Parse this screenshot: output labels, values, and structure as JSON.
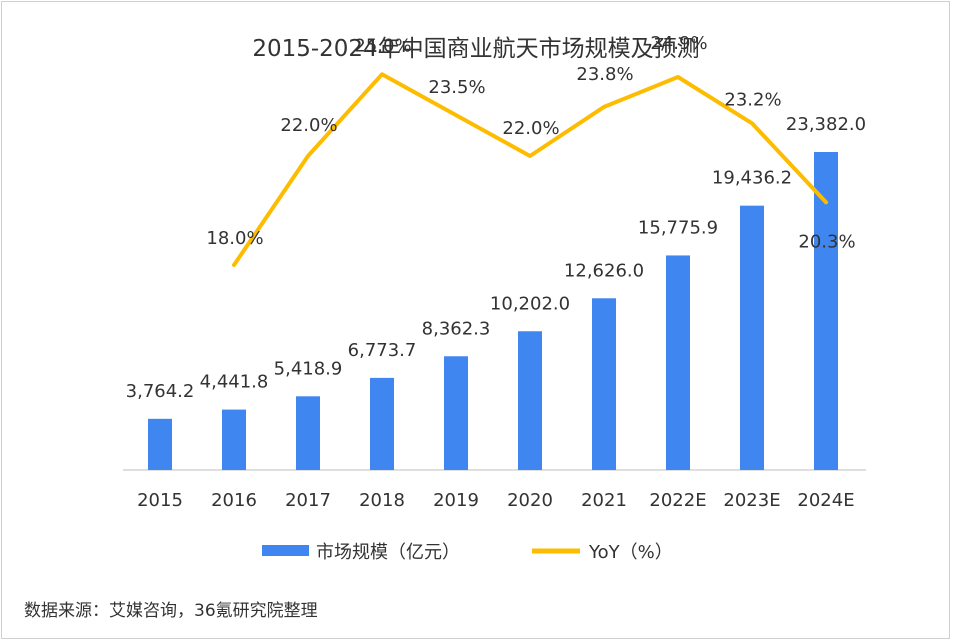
{
  "chart_data": {
    "type": "bar",
    "title": "2015-2024年中国商业航天市场规模及预测",
    "categories": [
      "2015",
      "2016",
      "2017",
      "2018",
      "2019",
      "2020",
      "2021",
      "2022E",
      "2023E",
      "2024E"
    ],
    "series": [
      {
        "name": "市场规模（亿元）",
        "type": "bar",
        "values": [
          3764.2,
          4441.8,
          5418.9,
          6773.7,
          8362.3,
          10202.0,
          12626.0,
          15775.9,
          19436.2,
          23382.0
        ],
        "labels": [
          "3,764.2",
          "4,441.8",
          "5,418.9",
          "6,773.7",
          "8,362.3",
          "10,202.0",
          "12,626.0",
          "15,775.9",
          "19,436.2",
          "23,382.0"
        ],
        "color": "#3f86f0"
      },
      {
        "name": "YoY（%）",
        "type": "line",
        "values": [
          null,
          18.0,
          22.0,
          25.0,
          23.5,
          22.0,
          23.8,
          24.9,
          23.2,
          20.3
        ],
        "labels": [
          "",
          "18.0%",
          "22.0%",
          "25.0%",
          "23.5%",
          "22.0%",
          "23.8%",
          "24.9%",
          "23.2%",
          "20.3%"
        ],
        "color": "#fdbc00"
      }
    ],
    "legend_position": "bottom",
    "grid": false,
    "source_note": "数据来源：艾媒咨询，36氪研究院整理"
  }
}
